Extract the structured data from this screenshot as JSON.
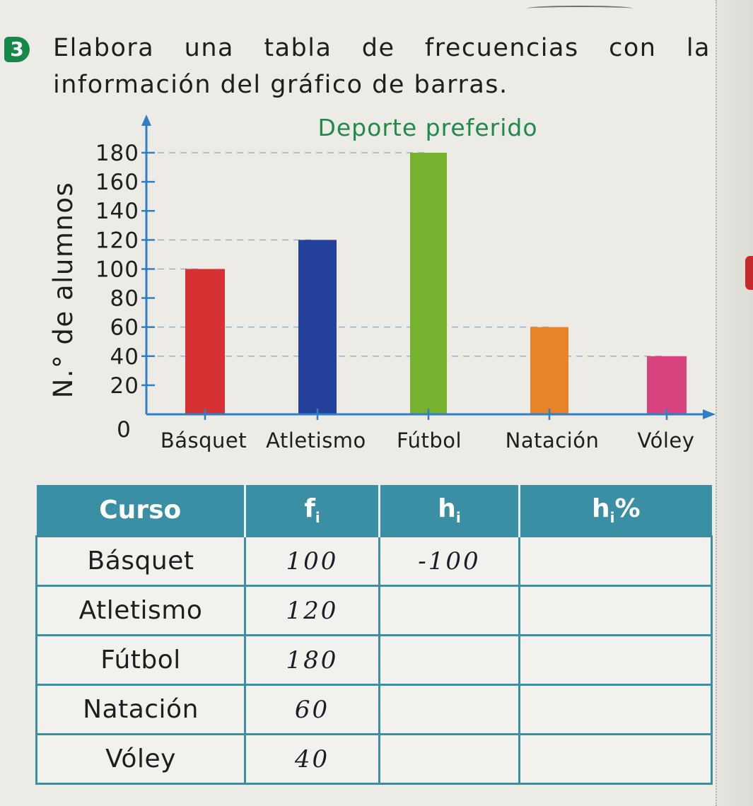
{
  "exercise": {
    "number": "3",
    "instruction": "Elabora una tabla de frecuencias con la información del gráfico de barras."
  },
  "chart_data": {
    "type": "bar",
    "title": "Deporte preferido",
    "ylabel": "N.° de alumnos",
    "xlabel": "",
    "categories": [
      "Básquet",
      "Atletismo",
      "Fútbol",
      "Natación",
      "Vóley"
    ],
    "values": [
      100,
      120,
      180,
      60,
      40
    ],
    "ylim": [
      0,
      180
    ],
    "yticks": [
      0,
      20,
      40,
      60,
      80,
      100,
      120,
      140,
      160,
      180
    ],
    "colors": [
      "#d63234",
      "#23409a",
      "#77b22f",
      "#e8832a",
      "#d9437f"
    ],
    "grid": "dashed guide lines at bar heights",
    "legend": "none"
  },
  "table": {
    "headers": {
      "curso": "Curso",
      "fi_base": "f",
      "fi_sub": "i",
      "hi_base": "h",
      "hi_sub": "i",
      "hip_base": "h",
      "hip_sub": "i",
      "hip_suffix": "%"
    },
    "rows": [
      {
        "sport": "Básquet",
        "fi": "100",
        "hi": "-100",
        "hip": ""
      },
      {
        "sport": "Atletismo",
        "fi": "120",
        "hi": "",
        "hip": ""
      },
      {
        "sport": "Fútbol",
        "fi": "180",
        "hi": "",
        "hip": ""
      },
      {
        "sport": "Natación",
        "fi": "60",
        "hi": "",
        "hip": ""
      },
      {
        "sport": "Vóley",
        "fi": "40",
        "hi": "",
        "hip": ""
      }
    ]
  },
  "colors": {
    "exercise_badge": "#16894a",
    "chart_title": "#1f8a4c",
    "axis": "#2f7fc4",
    "table_header": "#3a8fa4"
  }
}
